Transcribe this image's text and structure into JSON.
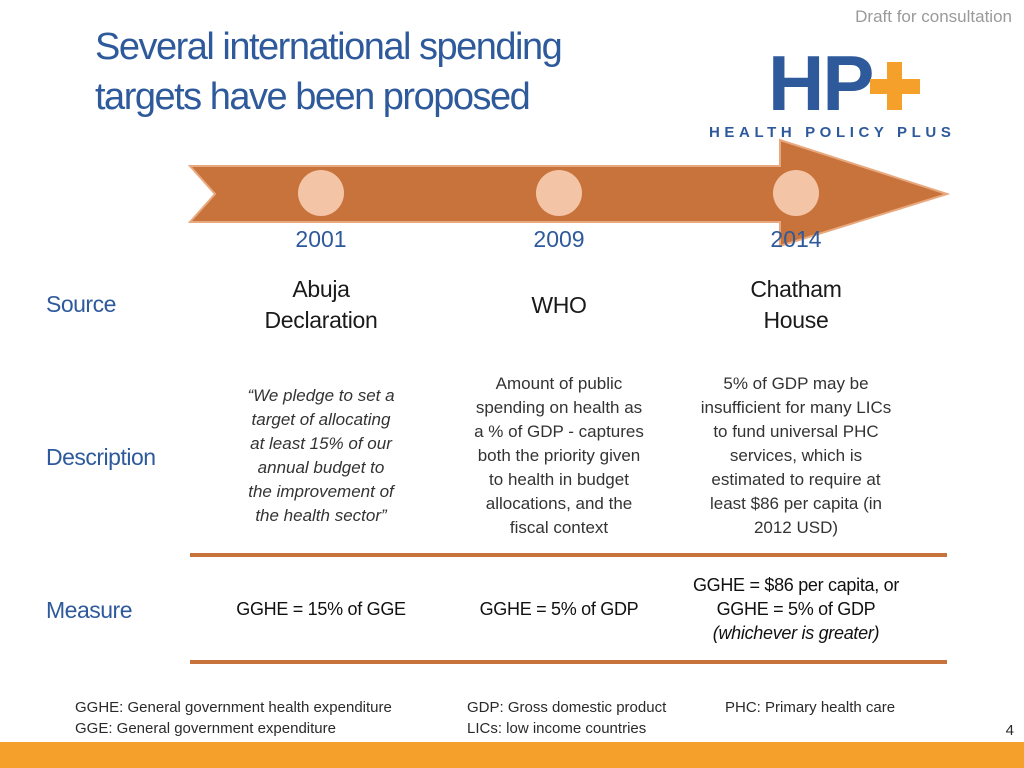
{
  "header": {
    "draft_label": "Draft for consultation",
    "title_line1": "Several international spending",
    "title_line2": "targets have been proposed"
  },
  "logo": {
    "mark": "HP",
    "plus_icon": "plus-icon",
    "wordmark": "HEALTH POLICY PLUS",
    "colors": {
      "blue": "#2e5a9c",
      "orange": "#f4a02a"
    }
  },
  "timeline": {
    "arrow_color": "#c8733b",
    "marker_color": "#f4c4a6",
    "years": [
      "2001",
      "2009",
      "2014"
    ]
  },
  "rows": {
    "source_label": "Source",
    "description_label": "Description",
    "measure_label": "Measure"
  },
  "sources": {
    "abuja_line1": "Abuja",
    "abuja_line2": "Declaration",
    "who": "WHO",
    "chatham_line1": "Chatham",
    "chatham_line2": "House"
  },
  "descriptions": {
    "abuja": [
      "“We pledge to set a",
      "target of allocating",
      "at least 15% of our",
      "annual budget to",
      "the improvement of",
      "the health sector”"
    ],
    "who": [
      "Amount of public",
      "spending on health as",
      "a % of GDP - captures",
      "both the priority given",
      "to health in budget",
      "allocations, and the",
      "fiscal context"
    ],
    "chatham": [
      "5% of GDP may be",
      "insufficient for many LICs",
      "to fund universal PHC",
      "services, which is",
      "estimated to require at",
      "least $86 per capita (in",
      "2012 USD)"
    ]
  },
  "measures": {
    "abuja": "GGHE = 15% of GGE",
    "who": "GGHE = 5% of GDP",
    "chatham_line1": "GGHE = $86 per capita, or",
    "chatham_line2": "GGHE = 5% of GDP",
    "chatham_line3": "(whichever is greater)"
  },
  "footnotes": {
    "gghe": "GGHE: General government health expenditure",
    "gge": "GGE: General government expenditure",
    "gdp": "GDP: Gross domestic product",
    "lics": "LICs: low income countries",
    "phc": "PHC: Primary health care"
  },
  "page_number": "4"
}
